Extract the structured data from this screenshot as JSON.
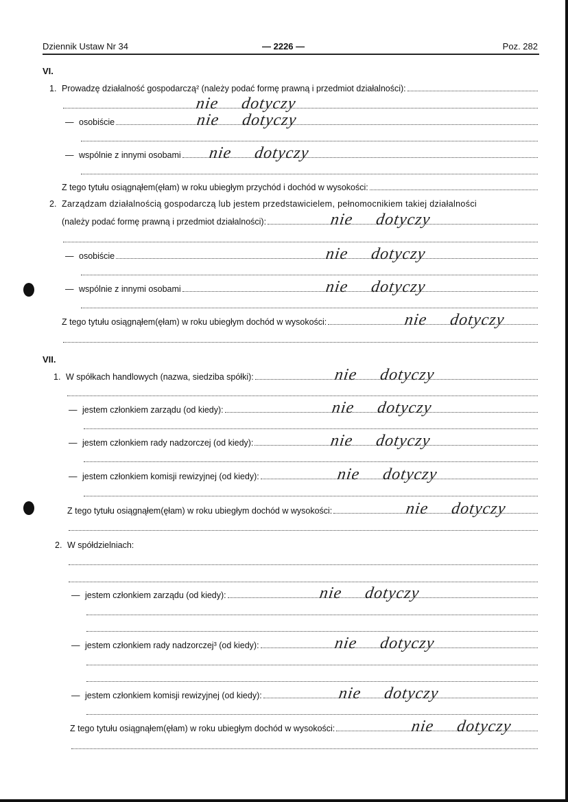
{
  "header": {
    "journal": "Dziennik Ustaw Nr 34",
    "page": "— 2226 —",
    "position": "Poz. 282"
  },
  "answer": {
    "w1": "nie",
    "w2": "dotyczy"
  },
  "section_vi": {
    "heading": "VI.",
    "item1": {
      "num": "1.",
      "text": "Prowadzę działalność gospodarczą² (należy podać formę prawną i przedmiot działalności):",
      "personal": "osobiście",
      "joint": "wspólnie z innymi osobami",
      "income": "Z tego tytułu osiągnąłem(ęłam) w roku ubiegłym przychód i dochód w wysokości:"
    },
    "item2": {
      "num": "2.",
      "text_line1": "Zarządzam działalnością gospodarczą lub jestem przedstawicielem, pełnomocnikiem takiej działalności",
      "text_line2": "(należy podać formę prawną i przedmiot działalności):",
      "personal": "osobiście",
      "joint": "wspólnie z innymi osobami",
      "income": "Z tego tytułu osiągnąłem(ęłam) w roku ubiegłym dochód w wysokości:"
    }
  },
  "section_vii": {
    "heading": "VII.",
    "item1": {
      "num": "1.",
      "text": "W spółkach handlowych (nazwa, siedziba spółki):",
      "board": "jestem członkiem zarządu (od kiedy):",
      "supervisory": "jestem członkiem rady nadzorczej (od kiedy):",
      "audit": "jestem członkiem komisji rewizyjnej (od kiedy):",
      "income": "Z tego tytułu osiągnąłem(ęłam) w roku ubiegłym dochód w wysokości:"
    },
    "item2": {
      "num": "2.",
      "text": "W spółdzielniach:",
      "board": "jestem członkiem zarządu (od kiedy):",
      "supervisory": "jestem członkiem rady nadzorczej³ (od kiedy):",
      "audit": "jestem członkiem komisji rewizyjnej (od kiedy):",
      "income": "Z tego tytułu osiągnąłem(ęłam) w roku ubiegłym dochód w wysokości:"
    }
  },
  "dash": "—"
}
